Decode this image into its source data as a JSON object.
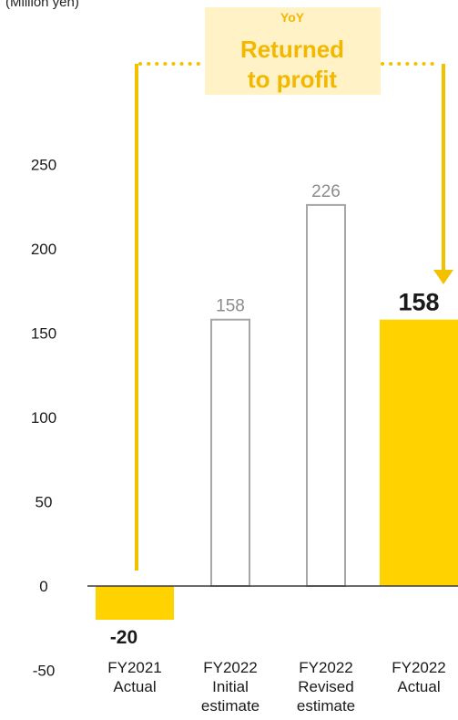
{
  "chart_data": {
    "type": "bar",
    "unit_label": "(Million yen)",
    "categories": [
      [
        "FY2021",
        "Actual"
      ],
      [
        "FY2022",
        "Initial",
        "estimate"
      ],
      [
        "FY2022",
        "Revised",
        "estimate"
      ],
      [
        "FY2022",
        "Actual"
      ]
    ],
    "values": [
      -20,
      158,
      226,
      158
    ],
    "value_labels": [
      "-20",
      "158",
      "226",
      "158"
    ],
    "bar_styles": [
      "solid",
      "outline",
      "outline",
      "solid"
    ],
    "yticks": [
      -50,
      0,
      50,
      100,
      150,
      200,
      250
    ],
    "ylim": [
      -50,
      250
    ],
    "grid": false,
    "annotation": {
      "line1": "YoY",
      "line2": "Returned",
      "line3": "to profit"
    }
  },
  "colors": {
    "accent": "#FFD200",
    "outline": "#A6A6A6",
    "annotation_box": "#FFF2C6",
    "annotation_text": "#F2B800",
    "connector": "#F2C200",
    "axis": "#3A3A3A",
    "text": "#1A1A1A",
    "muted_label": "#8C8C8C"
  }
}
